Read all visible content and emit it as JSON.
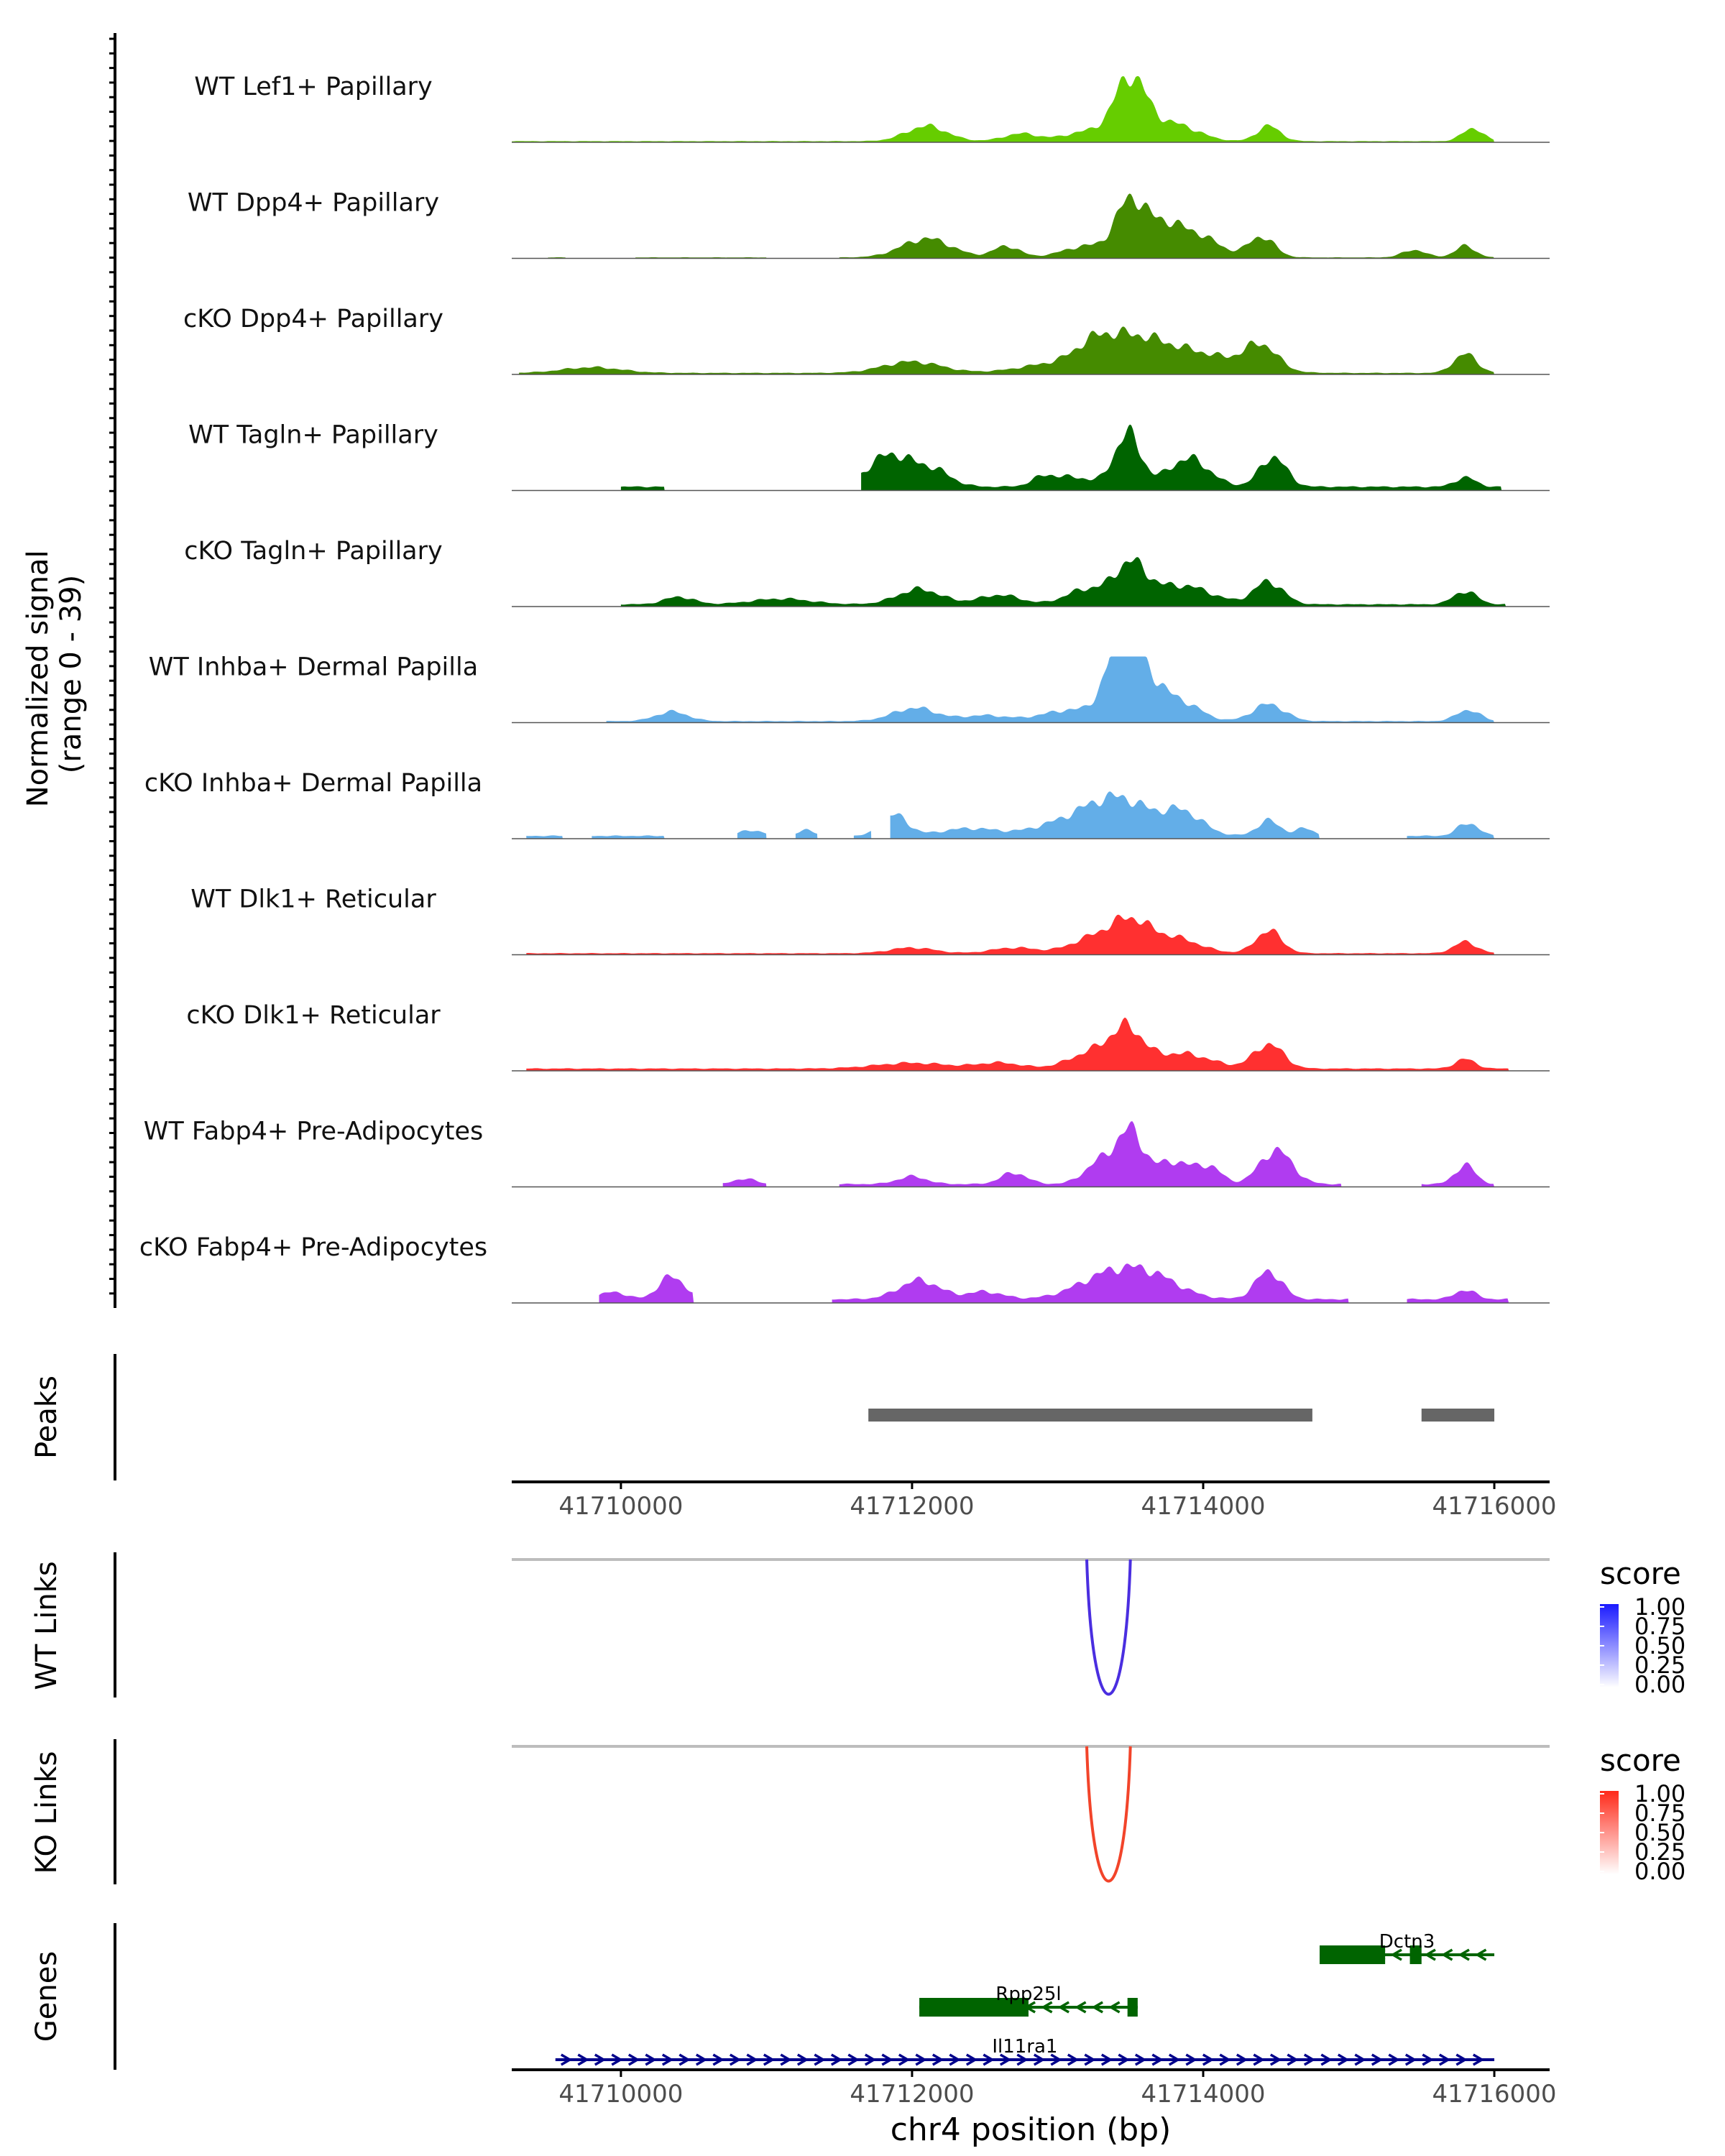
{
  "chart_data": {
    "type": "area",
    "title": "",
    "xlabel": "chr4 position (bp)",
    "ylabel": "Normalized signal\n(range 0 - 39)",
    "ylabel_lines": [
      "Normalized signal",
      "(range 0 - 39)"
    ],
    "x_range": [
      41709250,
      41716380
    ],
    "y_range": [
      0,
      39
    ],
    "x_ticks": [
      41710000,
      41712000,
      41714000,
      41716000
    ],
    "x_tick_labels": [
      "41710000",
      "41712000",
      "41714000",
      "41716000"
    ],
    "coverage_tracks": [
      {
        "name": "WT Lef1+ Papillary",
        "color": "#66cd00",
        "segments": [
          [
            41709250,
            41716000
          ]
        ],
        "peaks": [
          [
            41713500,
            33,
            110
          ],
          [
            41712100,
            8,
            140
          ],
          [
            41713800,
            9,
            160
          ],
          [
            41714450,
            8,
            80
          ],
          [
            41715850,
            7,
            70
          ],
          [
            41712750,
            4,
            120
          ],
          [
            41713200,
            5,
            150
          ]
        ],
        "base": 0.6
      },
      {
        "name": "WT Dpp4+ Papillary",
        "color": "#458b00",
        "segments": [
          [
            41709500,
            41709620
          ],
          [
            41710100,
            41711000
          ],
          [
            41711500,
            41716000
          ]
        ],
        "peaks": [
          [
            41713500,
            29,
            100
          ],
          [
            41713720,
            14,
            110
          ],
          [
            41713950,
            12,
            150
          ],
          [
            41712100,
            10,
            170
          ],
          [
            41714400,
            11,
            90
          ],
          [
            41712650,
            6,
            90
          ],
          [
            41715800,
            6,
            70
          ],
          [
            41713200,
            6,
            160
          ],
          [
            41715450,
            4,
            80
          ]
        ],
        "base": 0.5
      },
      {
        "name": "cKO Dpp4+ Papillary",
        "color": "#458b00",
        "segments": [
          [
            41709300,
            41716000
          ]
        ],
        "peaks": [
          [
            41713500,
            14,
            200
          ],
          [
            41713250,
            9,
            130
          ],
          [
            41713900,
            11,
            300
          ],
          [
            41714400,
            13,
            110
          ],
          [
            41712000,
            6,
            200
          ],
          [
            41715800,
            10,
            80
          ],
          [
            41709800,
            3,
            200
          ],
          [
            41713000,
            5,
            250
          ]
        ],
        "base": 0.8
      },
      {
        "name": "WT Tagln+ Papillary",
        "color": "#006400",
        "segments": [
          [
            41710000,
            41710300
          ],
          [
            41711650,
            41716050
          ]
        ],
        "peaks": [
          [
            41713480,
            28,
            90
          ],
          [
            41713900,
            15,
            140
          ],
          [
            41711850,
            17,
            150
          ],
          [
            41712150,
            8,
            120
          ],
          [
            41714480,
            16,
            90
          ],
          [
            41713100,
            5,
            150
          ],
          [
            41712900,
            4,
            80
          ],
          [
            41715800,
            5,
            70
          ]
        ],
        "base": 2.0
      },
      {
        "name": "cKO Tagln+ Papillary",
        "color": "#006400",
        "segments": [
          [
            41710000,
            41716080
          ]
        ],
        "peaks": [
          [
            41713500,
            20,
            110
          ],
          [
            41713200,
            8,
            140
          ],
          [
            41713850,
            10,
            200
          ],
          [
            41714450,
            12,
            100
          ],
          [
            41712050,
            8,
            150
          ],
          [
            41712600,
            5,
            140
          ],
          [
            41710400,
            4,
            100
          ],
          [
            41715800,
            7,
            80
          ],
          [
            41711100,
            3,
            200
          ]
        ],
        "base": 1.2
      },
      {
        "name": "WT Inhba+ Dermal Papilla",
        "color": "#63aee8",
        "segments": [
          [
            41709900,
            41716000
          ]
        ],
        "peaks": [
          [
            41713480,
            33,
            80
          ],
          [
            41713380,
            20,
            90
          ],
          [
            41713600,
            12,
            110
          ],
          [
            41713850,
            10,
            130
          ],
          [
            41713650,
            8,
            90
          ],
          [
            41714450,
            9,
            110
          ],
          [
            41712020,
            7,
            150
          ],
          [
            41710350,
            5,
            110
          ],
          [
            41715820,
            6,
            80
          ],
          [
            41713100,
            6,
            200
          ],
          [
            41712500,
            3,
            150
          ]
        ],
        "base": 0.8
      },
      {
        "name": "cKO Inhba+ Dermal Papilla",
        "color": "#63aee8",
        "segments": [
          [
            41709350,
            41709600
          ],
          [
            41709800,
            41710300
          ],
          [
            41710800,
            41711000
          ],
          [
            41711200,
            41711350
          ],
          [
            41711600,
            41711720
          ],
          [
            41711850,
            41714800
          ],
          [
            41715400,
            41716000
          ]
        ],
        "peaks": [
          [
            41713480,
            16,
            160
          ],
          [
            41713250,
            10,
            150
          ],
          [
            41713850,
            13,
            140
          ],
          [
            41713000,
            6,
            180
          ],
          [
            41711880,
            11,
            90
          ],
          [
            41712400,
            4,
            200
          ],
          [
            41714450,
            8,
            80
          ],
          [
            41714700,
            4,
            60
          ],
          [
            41715820,
            7,
            70
          ],
          [
            41710900,
            3,
            80
          ],
          [
            41711280,
            3,
            60
          ]
        ],
        "base": 1.5
      },
      {
        "name": "WT Dlk1+ Reticular",
        "color": "#ff3030",
        "segments": [
          [
            41709350,
            41716000
          ]
        ],
        "peaks": [
          [
            41713500,
            15,
            130
          ],
          [
            41713250,
            8,
            160
          ],
          [
            41713800,
            8,
            170
          ],
          [
            41714450,
            12,
            90
          ],
          [
            41712000,
            3,
            150
          ],
          [
            41712700,
            3,
            150
          ],
          [
            41715800,
            6,
            80
          ]
        ],
        "base": 0.8
      },
      {
        "name": "cKO Dlk1+ Reticular",
        "color": "#ff3030",
        "segments": [
          [
            41709350,
            41716100
          ]
        ],
        "peaks": [
          [
            41713480,
            18,
            110
          ],
          [
            41713250,
            9,
            160
          ],
          [
            41713850,
            8,
            200
          ],
          [
            41714450,
            13,
            100
          ],
          [
            41712000,
            3,
            250
          ],
          [
            41712600,
            3,
            150
          ],
          [
            41715800,
            5,
            70
          ]
        ],
        "base": 1.2
      },
      {
        "name": "WT Fabp4+ Pre-Adipocytes",
        "color": "#b03cf0",
        "segments": [
          [
            41710700,
            41711000
          ],
          [
            41711500,
            41714950
          ],
          [
            41715500,
            41716000
          ]
        ],
        "peaks": [
          [
            41713500,
            26,
            90
          ],
          [
            41713300,
            12,
            110
          ],
          [
            41713800,
            12,
            130
          ],
          [
            41714500,
            18,
            110
          ],
          [
            41712000,
            4,
            100
          ],
          [
            41712700,
            6,
            90
          ],
          [
            41714050,
            8,
            80
          ],
          [
            41715800,
            10,
            70
          ],
          [
            41710850,
            3,
            70
          ]
        ],
        "base": 1.5
      },
      {
        "name": "cKO Fabp4+ Pre-Adipocytes",
        "color": "#b03cf0",
        "segments": [
          [
            41709850,
            41710500
          ],
          [
            41711450,
            41715000
          ],
          [
            41715400,
            41716100
          ]
        ],
        "peaks": [
          [
            41713350,
            12,
            220
          ],
          [
            41713650,
            10,
            200
          ],
          [
            41712050,
            10,
            140
          ],
          [
            41714450,
            15,
            90
          ],
          [
            41710350,
            12,
            90
          ],
          [
            41709950,
            4,
            80
          ],
          [
            41712500,
            4,
            120
          ],
          [
            41715800,
            5,
            70
          ]
        ],
        "base": 2.0
      }
    ],
    "peaks_track": {
      "label": "Peaks",
      "color": "#666666",
      "regions": [
        [
          41711700,
          41714750
        ],
        [
          41715500,
          41716000
        ]
      ]
    },
    "link_tracks": [
      {
        "label": "WT Links",
        "color": "#4a2ee0",
        "start": 41713200,
        "end": 41713500,
        "score": 1.0,
        "legend": {
          "title": "score",
          "ticks": [
            "1.00",
            "0.75",
            "0.50",
            "0.25",
            "0.00"
          ],
          "color_high": "#1a1aff"
        }
      },
      {
        "label": "KO Links",
        "color": "#f2442a",
        "start": 41713200,
        "end": 41713500,
        "score": 1.0,
        "legend": {
          "title": "score",
          "ticks": [
            "1.00",
            "0.75",
            "0.50",
            "0.25",
            "0.00"
          ],
          "color_high": "#ff2a1a"
        }
      }
    ],
    "genes_track": {
      "label": "Genes",
      "genes": [
        {
          "name": "Dctn3",
          "color": "#006400",
          "strand": "-",
          "start": 41714800,
          "end": 41716000,
          "row": 0,
          "exons": [
            [
              41714800,
              41715250
            ],
            [
              41715420,
              41715500
            ]
          ]
        },
        {
          "name": "Rpp25l",
          "color": "#006400",
          "strand": "-",
          "start": 41712050,
          "end": 41713550,
          "row": 1,
          "exons": [
            [
              41712050,
              41712800
            ],
            [
              41713480,
              41713550
            ]
          ]
        },
        {
          "name": "Il11ra1",
          "color": "#00008b",
          "strand": "+",
          "start": 41709550,
          "end": 41716000,
          "row": 2,
          "exons": []
        }
      ]
    }
  }
}
